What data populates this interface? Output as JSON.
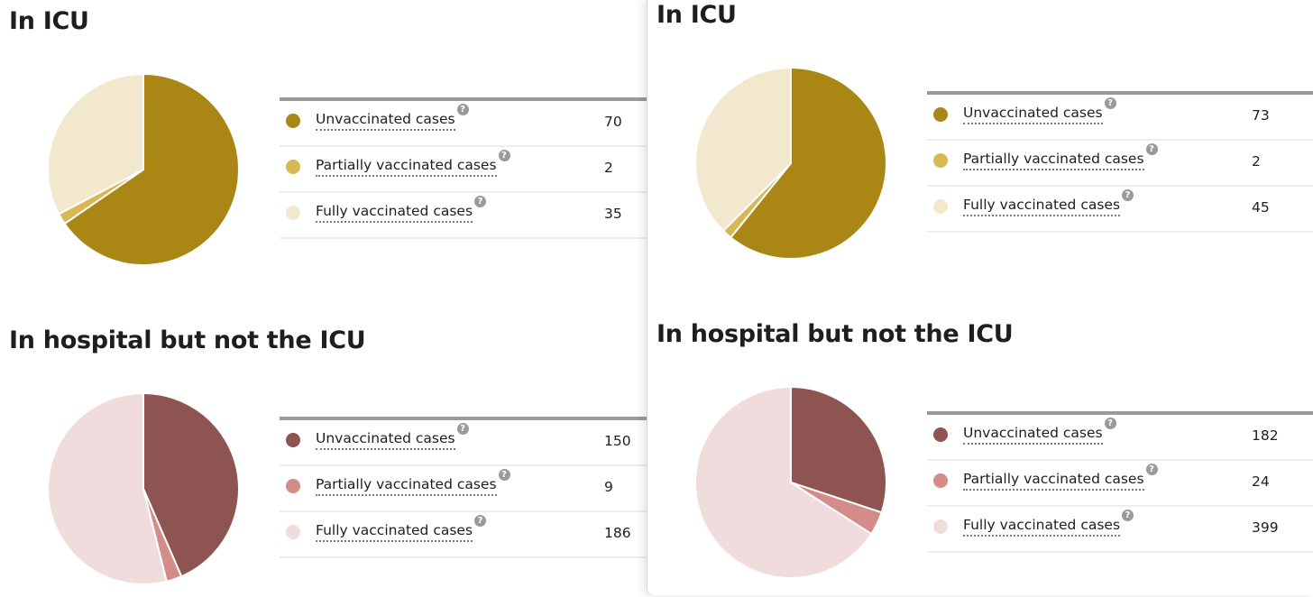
{
  "colors": {
    "icu_unvacc": "#aa8714",
    "icu_partial": "#d7b853",
    "icu_full": "#f2e8cd",
    "hosp_unvacc": "#8e5452",
    "hosp_partial": "#d38c89",
    "hosp_full": "#f1dcdd"
  },
  "help_glyph": "?",
  "chart_data": [
    {
      "type": "pie",
      "title": "In ICU",
      "categories": [
        "Unvaccinated cases",
        "Partially vaccinated cases",
        "Fully vaccinated cases"
      ],
      "values": [
        70,
        2,
        35
      ],
      "colors": [
        "#aa8714",
        "#d7b853",
        "#f2e8cd"
      ]
    },
    {
      "type": "pie",
      "title": "In hospital but not the ICU",
      "categories": [
        "Unvaccinated cases",
        "Partially vaccinated cases",
        "Fully vaccinated cases"
      ],
      "values": [
        150,
        9,
        186
      ],
      "colors": [
        "#8e5452",
        "#d38c89",
        "#f1dcdd"
      ]
    },
    {
      "type": "pie",
      "title": "In ICU",
      "categories": [
        "Unvaccinated cases",
        "Partially vaccinated cases",
        "Fully vaccinated cases"
      ],
      "values": [
        73,
        2,
        45
      ],
      "colors": [
        "#aa8714",
        "#d7b853",
        "#f2e8cd"
      ]
    },
    {
      "type": "pie",
      "title": "In hospital but not the ICU",
      "categories": [
        "Unvaccinated cases",
        "Partially vaccinated cases",
        "Fully vaccinated cases"
      ],
      "values": [
        182,
        24,
        399
      ],
      "colors": [
        "#8e5452",
        "#d38c89",
        "#f1dcdd"
      ]
    }
  ]
}
